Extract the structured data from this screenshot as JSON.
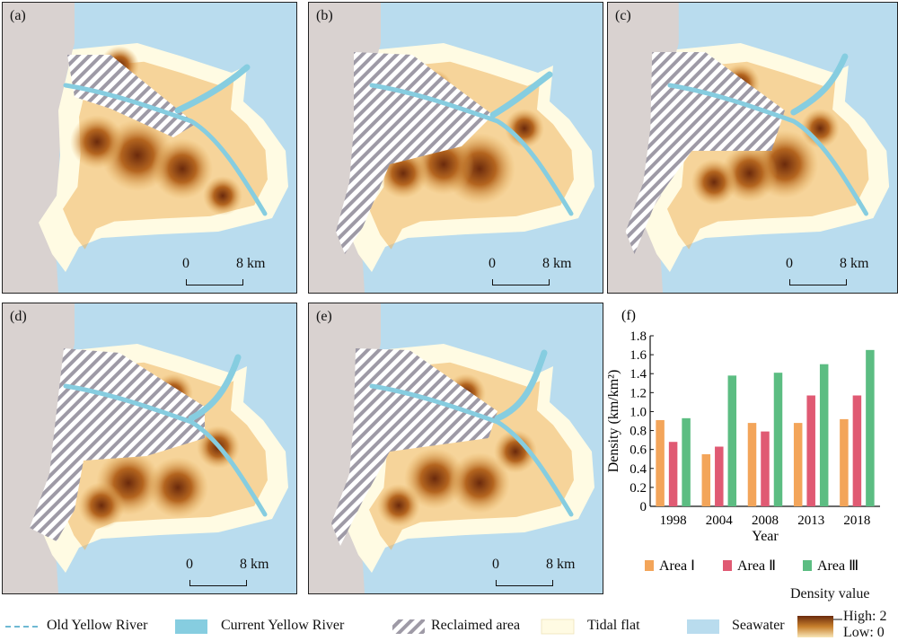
{
  "panels": [
    {
      "label": "(a)",
      "scale_zero": "0",
      "scale_end": "8 km"
    },
    {
      "label": "(b)",
      "scale_zero": "0",
      "scale_end": "8 km"
    },
    {
      "label": "(c)",
      "scale_zero": "0",
      "scale_end": "8 km"
    },
    {
      "label": "(d)",
      "scale_zero": "0",
      "scale_end": "8 km"
    },
    {
      "label": "(e)",
      "scale_zero": "0",
      "scale_end": "8 km"
    }
  ],
  "colors": {
    "seawater": "#b9dcee",
    "land": "#d9d2d0",
    "tidal_flat": "#fffbe3",
    "river_current": "#86cde0",
    "river_old": "#6fb9d3",
    "density_high": "#6b2a0c",
    "density_mid": "#c8802d",
    "density_low": "#f3d79a",
    "area1": "#f3a55a",
    "area2": "#e05a73",
    "area3": "#5cbd82"
  },
  "chart_data": {
    "type": "bar",
    "panel_label": "(f)",
    "categories": [
      "1998",
      "2004",
      "2008",
      "2013",
      "2018"
    ],
    "series": [
      {
        "name": "Area Ⅰ",
        "values": [
          0.91,
          0.55,
          0.88,
          0.88,
          0.92
        ]
      },
      {
        "name": "Area Ⅱ",
        "values": [
          0.68,
          0.63,
          0.79,
          1.17,
          1.17
        ]
      },
      {
        "name": "Area Ⅲ",
        "values": [
          0.93,
          1.38,
          1.41,
          1.5,
          1.65
        ]
      }
    ],
    "xlabel": "Year",
    "ylabel": "Density (km/km²)",
    "ylim": [
      0,
      1.8
    ],
    "yticks": [
      "0",
      "0.2",
      "0.4",
      "0.6",
      "0.8",
      "1.0",
      "1.2",
      "1.4",
      "1.6",
      "1.8"
    ],
    "grid": false,
    "legend_position": "bottom"
  },
  "legend": {
    "old_river": "Old Yellow River",
    "current_river": "Current Yellow River",
    "reclaimed": "Reclaimed area",
    "tidal_flat": "Tidal flat",
    "seawater": "Seawater",
    "density_title": "Density value",
    "density_high": "High: 2",
    "density_low": "Low: 0"
  }
}
